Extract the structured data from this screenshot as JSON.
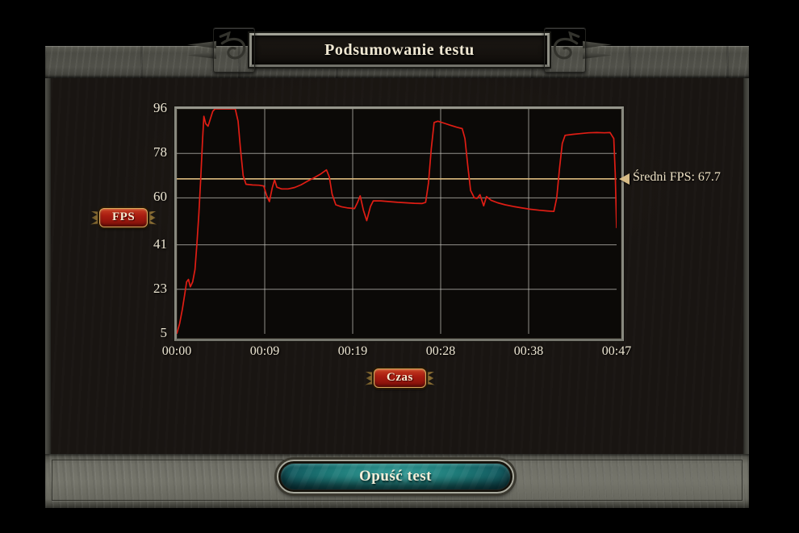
{
  "header": {
    "title": "Podsumowanie testu"
  },
  "footer": {
    "exit_button_label": "Opuść test"
  },
  "colors": {
    "line": "#e01d14",
    "average_line": "#dcba7e",
    "grid": "#c6c5bd",
    "plot_background": "#0b0907",
    "badge_red": "#a81c10",
    "badge_gold_border": "#d9a75a",
    "button_teal": "#1e7a78",
    "text_cream": "#f0e8d3"
  },
  "chart_data": {
    "type": "line",
    "title": "",
    "xlabel": "Czas",
    "ylabel": "FPS",
    "x_ticks": [
      "00:00",
      "00:09",
      "00:19",
      "00:28",
      "00:38",
      "00:47"
    ],
    "y_ticks": [
      96,
      78,
      60,
      41,
      23,
      5
    ],
    "ylim": [
      5,
      96
    ],
    "x_range_seconds": [
      0,
      47
    ],
    "grid": true,
    "legend_position": "none",
    "average_fps": 67.7,
    "average_label": "Średni FPS: 67.7",
    "series": [
      {
        "name": "FPS",
        "points": [
          [
            0,
            5
          ],
          [
            0.3,
            9
          ],
          [
            0.6,
            15
          ],
          [
            0.85,
            21
          ],
          [
            1.05,
            26
          ],
          [
            1.25,
            27
          ],
          [
            1.45,
            24
          ],
          [
            1.7,
            26
          ],
          [
            1.95,
            31
          ],
          [
            2.15,
            41
          ],
          [
            2.35,
            53
          ],
          [
            2.55,
            67
          ],
          [
            2.75,
            83
          ],
          [
            2.9,
            93
          ],
          [
            3.1,
            90
          ],
          [
            3.35,
            89
          ],
          [
            3.6,
            92
          ],
          [
            3.85,
            95
          ],
          [
            4.1,
            97
          ],
          [
            6.25,
            97
          ],
          [
            6.55,
            91
          ],
          [
            6.8,
            80
          ],
          [
            7.1,
            69
          ],
          [
            7.4,
            65.5
          ],
          [
            8.1,
            65.2
          ],
          [
            8.8,
            65.1
          ],
          [
            9.3,
            64.8
          ],
          [
            9.6,
            61
          ],
          [
            9.9,
            58.5
          ],
          [
            10.2,
            64
          ],
          [
            10.45,
            67.3
          ],
          [
            10.7,
            64.3
          ],
          [
            11.2,
            63.6
          ],
          [
            11.9,
            63.6
          ],
          [
            12.6,
            64.2
          ],
          [
            13.3,
            65.3
          ],
          [
            14,
            66.8
          ],
          [
            14.7,
            68.2
          ],
          [
            15.4,
            69.7
          ],
          [
            16,
            71.3
          ],
          [
            16.3,
            68.5
          ],
          [
            16.6,
            61.5
          ],
          [
            17,
            57.2
          ],
          [
            17.6,
            56.4
          ],
          [
            18.3,
            55.9
          ],
          [
            19,
            55.7
          ],
          [
            19.3,
            58
          ],
          [
            19.6,
            60.8
          ],
          [
            19.95,
            55
          ],
          [
            20.3,
            50.8
          ],
          [
            20.7,
            56.5
          ],
          [
            21,
            58.8
          ],
          [
            21.8,
            58.8
          ],
          [
            22.7,
            58.5
          ],
          [
            23.6,
            58.2
          ],
          [
            24.5,
            58
          ],
          [
            25.4,
            57.8
          ],
          [
            26.2,
            57.7
          ],
          [
            26.6,
            58.2
          ],
          [
            26.9,
            66
          ],
          [
            27.2,
            80
          ],
          [
            27.5,
            90.5
          ],
          [
            27.9,
            91
          ],
          [
            28.5,
            90.3
          ],
          [
            29.2,
            89.4
          ],
          [
            29.9,
            88.6
          ],
          [
            30.5,
            88
          ],
          [
            30.8,
            84
          ],
          [
            31.1,
            73
          ],
          [
            31.4,
            63
          ],
          [
            31.8,
            60
          ],
          [
            32.1,
            59.8
          ],
          [
            32.4,
            61.3
          ],
          [
            32.8,
            56.8
          ],
          [
            33.1,
            60.5
          ],
          [
            33.6,
            59
          ],
          [
            34.3,
            58
          ],
          [
            35.1,
            57.2
          ],
          [
            36,
            56.5
          ],
          [
            36.9,
            55.9
          ],
          [
            37.8,
            55.4
          ],
          [
            38.7,
            55
          ],
          [
            39.6,
            54.7
          ],
          [
            40.3,
            54.5
          ],
          [
            40.6,
            60
          ],
          [
            40.9,
            72
          ],
          [
            41.2,
            82
          ],
          [
            41.5,
            85.3
          ],
          [
            42.3,
            85.7
          ],
          [
            43.1,
            86
          ],
          [
            44,
            86.3
          ],
          [
            44.9,
            86.4
          ],
          [
            45.7,
            86.3
          ],
          [
            46.3,
            86.4
          ],
          [
            46.7,
            84
          ],
          [
            46.85,
            70
          ],
          [
            47,
            48
          ]
        ]
      }
    ]
  }
}
